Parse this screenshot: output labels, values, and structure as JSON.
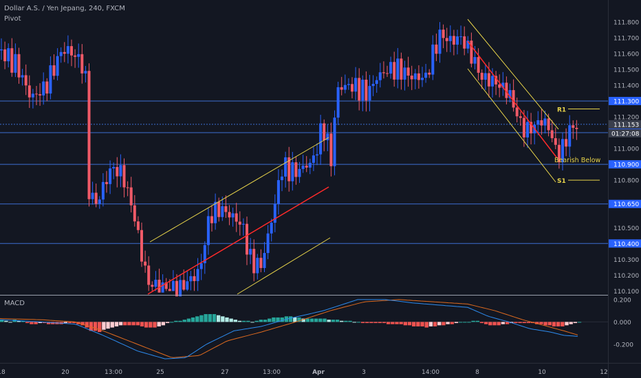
{
  "header": {
    "symbol_line": "Dollar A.S. / Yen Jepang, 240, FXCM",
    "indicator": "Pivot"
  },
  "macd_label": "MACD",
  "price_axis": {
    "ticks": [
      "111.800",
      "111.700",
      "111.600",
      "111.500",
      "111.400",
      "111.200",
      "111.000",
      "110.800",
      "110.500",
      "110.300",
      "110.200",
      "110.100"
    ],
    "labels": {
      "level_111300": "111.300",
      "current_price": "111.153",
      "countdown": "01:27:08",
      "level_111100": "111.100",
      "level_110900": "110.900",
      "level_110650": "110.650",
      "level_110400": "110.400"
    }
  },
  "macd_axis": {
    "ticks": [
      "0.200",
      "0.000",
      "-0.200"
    ]
  },
  "time_axis": {
    "labels": [
      "18",
      "20",
      "13:00",
      "25",
      "27",
      "13:00",
      "Apr",
      "3",
      "14:00",
      "8",
      "10",
      "12"
    ]
  },
  "annotations": {
    "r1": "R1",
    "s1": "S1",
    "bearish": "Bearish Below"
  },
  "colors": {
    "background": "#131722",
    "bull_candle": "#2962ff",
    "bear_candle": "#f05a68",
    "level_line": "#3d6fd1",
    "channel_yellow": "#e7d34a",
    "channel_red": "#ff2a2a",
    "macd_line": "#2d8cf0",
    "signal_line": "#e06b1f",
    "hist_teal": "#26a69a",
    "hist_light": "#b2ebe6",
    "hist_red": "#ef5350",
    "hist_pink": "#ffcdd2",
    "level_label_bg": "#2962ff",
    "current_price_bg": "#3a3f4d"
  },
  "chart_data": {
    "type": "candlestick",
    "title": "Dollar A.S. / Yen Jepang, 240, FXCM",
    "price_range": [
      110.08,
      111.86
    ],
    "levels": [
      111.3,
      111.153,
      111.1,
      110.9,
      110.65,
      110.4
    ],
    "pivots": {
      "R1": 111.25,
      "S1": 110.8
    },
    "macd": {
      "range": [
        -0.36,
        0.23
      ],
      "histogram": [
        0.02,
        0.01,
        0.0,
        0.02,
        0.01,
        0.01,
        -0.01,
        -0.02,
        -0.02,
        -0.01,
        -0.01,
        -0.02,
        -0.02,
        -0.02,
        -0.02,
        -0.01,
        -0.01,
        -0.01,
        -0.02,
        -0.03,
        -0.05,
        -0.08,
        -0.08,
        -0.09,
        -0.07,
        -0.06,
        -0.05,
        -0.04,
        -0.03,
        -0.03,
        -0.03,
        -0.03,
        -0.03,
        -0.04,
        -0.05,
        -0.05,
        -0.05,
        -0.04,
        -0.03,
        -0.01,
        0.0,
        0.01,
        0.01,
        0.02,
        0.03,
        0.04,
        0.05,
        0.06,
        0.07,
        0.07,
        0.07,
        0.06,
        0.05,
        0.04,
        0.03,
        0.02,
        0.01,
        0.01,
        0.01,
        0.0,
        0.01,
        0.02,
        0.02,
        0.03,
        0.04,
        0.04,
        0.04,
        0.05,
        0.05,
        0.04,
        0.04,
        0.03,
        0.03,
        0.03,
        0.03,
        0.03,
        0.03,
        0.02,
        0.02,
        0.02,
        0.01,
        0.01,
        0.01,
        0.0,
        0.0,
        -0.01,
        -0.01,
        -0.01,
        -0.01,
        -0.01,
        -0.01,
        -0.02,
        -0.02,
        -0.02,
        -0.02,
        -0.03,
        -0.03,
        -0.04,
        -0.04,
        -0.04,
        -0.05,
        -0.04,
        -0.04,
        -0.03,
        -0.03,
        -0.02,
        -0.02,
        -0.01,
        0.0,
        0.0,
        0.0,
        0.01,
        0.01,
        -0.01,
        -0.02,
        -0.03,
        -0.03,
        -0.03,
        -0.02,
        -0.02,
        -0.01,
        -0.01,
        -0.01,
        -0.01,
        -0.01,
        -0.01,
        -0.02,
        -0.02,
        -0.03,
        -0.03,
        -0.04,
        -0.04,
        -0.04,
        -0.03,
        -0.02,
        -0.01,
        0.0
      ]
    }
  }
}
